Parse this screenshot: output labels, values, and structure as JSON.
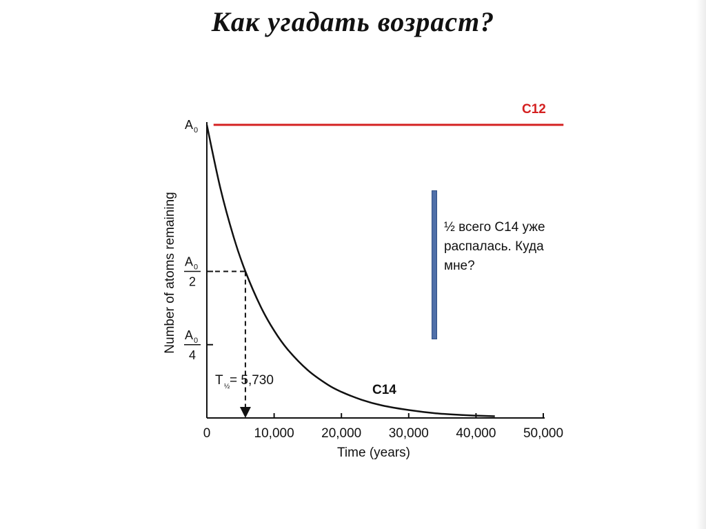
{
  "slide": {
    "title": "Как  угадать  возраст?"
  },
  "note": {
    "text": "½ всего С14 уже распалась. Куда мне?"
  },
  "colors": {
    "c12_line": "#d42020",
    "c12_label": "#d42020",
    "c14_curve": "#111111",
    "note_bar": "#4f6fa8"
  },
  "chart_data": {
    "type": "line",
    "title": "",
    "xlabel": "Time (years)",
    "ylabel": "Number of atoms remaining",
    "xlim": [
      0,
      50000
    ],
    "ylim": [
      0,
      1
    ],
    "x_ticks": [
      0,
      10000,
      20000,
      30000,
      40000,
      50000
    ],
    "x_tick_labels": [
      "0",
      "10,000",
      "20,000",
      "30,000",
      "40,000",
      "50,000"
    ],
    "y_ticks": [
      0.25,
      0.5,
      1
    ],
    "y_tick_labels": [
      {
        "value": 1,
        "num": "A",
        "sub": "0",
        "den": ""
      },
      {
        "value": 0.5,
        "num": "A",
        "sub": "0",
        "den": "2"
      },
      {
        "value": 0.25,
        "num": "A",
        "sub": "0",
        "den": "4"
      }
    ],
    "half_life": 5730,
    "half_life_label": {
      "prefix": "T",
      "sub": "½",
      "suffix": " = 5,730"
    },
    "series": [
      {
        "name": "C12",
        "x": [
          1000,
          53000
        ],
        "y": [
          1,
          1
        ]
      },
      {
        "name": "C14",
        "x": [
          0,
          2000,
          4000,
          5730,
          8000,
          10000,
          12000,
          15000,
          18000,
          20000,
          23000,
          26000,
          30000,
          34000,
          38000,
          40000,
          42800
        ],
        "y": [
          1,
          0.785,
          0.616,
          0.5,
          0.38,
          0.298,
          0.234,
          0.163,
          0.113,
          0.089,
          0.062,
          0.043,
          0.027,
          0.016,
          0.01,
          0.008,
          0.006
        ]
      }
    ]
  }
}
